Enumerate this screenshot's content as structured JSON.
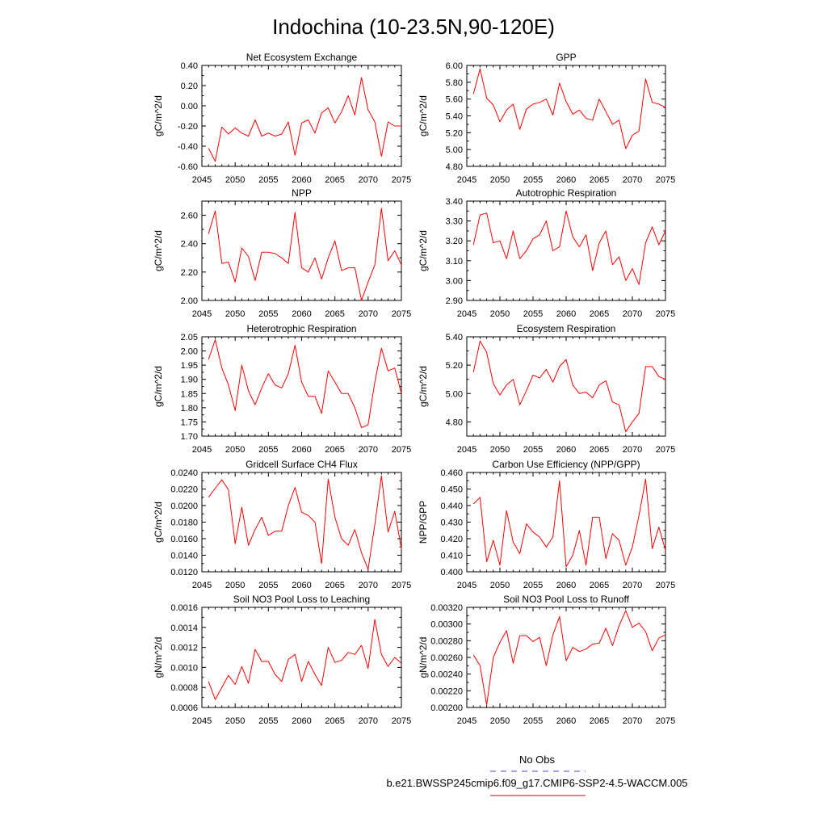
{
  "figure": {
    "title": "Indochina (10-23.5N,90-120E)"
  },
  "legend": {
    "entries": [
      {
        "label": "No Obs",
        "color": "#6a6ad6",
        "style": "dashed"
      },
      {
        "label": "b.e21.BWSSP245cmip6.f09_g17.CMIP6-SSP2-4.5-WACCM.005",
        "color": "#dd3333",
        "style": "solid"
      }
    ]
  },
  "colors": {
    "series": "#ff0000",
    "axis": "#000000"
  },
  "chart_data": [
    {
      "type": "line",
      "id": "nee",
      "title": "Net Ecosystem Exchange",
      "ylabel": "gC/m^2/d",
      "xlim": [
        2045,
        2075
      ],
      "xticks": [
        2045,
        2050,
        2055,
        2060,
        2065,
        2070,
        2075
      ],
      "ylim": [
        -0.6,
        0.4
      ],
      "yticks": [
        -0.6,
        -0.4,
        -0.2,
        0.0,
        0.2,
        0.4
      ],
      "ytick_labels": [
        "-0.60",
        "-0.40",
        "-0.20",
        "0.00",
        "0.20",
        "0.40"
      ],
      "x": [
        2046,
        2047,
        2048,
        2049,
        2050,
        2051,
        2052,
        2053,
        2054,
        2055,
        2056,
        2057,
        2058,
        2059,
        2060,
        2061,
        2062,
        2063,
        2064,
        2065,
        2066,
        2067,
        2068,
        2069,
        2070,
        2071,
        2072,
        2073,
        2074,
        2075
      ],
      "values": [
        -0.42,
        -0.55,
        -0.21,
        -0.28,
        -0.22,
        -0.27,
        -0.3,
        -0.14,
        -0.3,
        -0.27,
        -0.3,
        -0.28,
        -0.16,
        -0.49,
        -0.17,
        -0.14,
        -0.27,
        -0.07,
        -0.02,
        -0.17,
        -0.06,
        0.1,
        -0.09,
        0.28,
        -0.04,
        -0.16,
        -0.5,
        -0.16,
        -0.2,
        -0.2
      ]
    },
    {
      "type": "line",
      "id": "gpp",
      "title": "GPP",
      "ylabel": "gC/m^2/d",
      "xlim": [
        2045,
        2075
      ],
      "xticks": [
        2045,
        2050,
        2055,
        2060,
        2065,
        2070,
        2075
      ],
      "ylim": [
        4.8,
        6.0
      ],
      "yticks": [
        4.8,
        5.0,
        5.2,
        5.4,
        5.6,
        5.8,
        6.0
      ],
      "ytick_labels": [
        "4.80",
        "5.00",
        "5.20",
        "5.40",
        "5.60",
        "5.80",
        "6.00"
      ],
      "x": [
        2046,
        2047,
        2048,
        2049,
        2050,
        2051,
        2052,
        2053,
        2054,
        2055,
        2056,
        2057,
        2058,
        2059,
        2060,
        2061,
        2062,
        2063,
        2064,
        2065,
        2066,
        2067,
        2068,
        2069,
        2070,
        2071,
        2072,
        2073,
        2074,
        2075
      ],
      "values": [
        5.66,
        5.96,
        5.61,
        5.53,
        5.33,
        5.47,
        5.54,
        5.24,
        5.48,
        5.54,
        5.56,
        5.6,
        5.41,
        5.79,
        5.57,
        5.42,
        5.47,
        5.37,
        5.35,
        5.6,
        5.45,
        5.3,
        5.35,
        5.01,
        5.17,
        5.22,
        5.84,
        5.56,
        5.54,
        5.5
      ]
    },
    {
      "type": "line",
      "id": "npp",
      "title": "NPP",
      "ylabel": "gC/m^2/d",
      "xlim": [
        2045,
        2075
      ],
      "xticks": [
        2045,
        2050,
        2055,
        2060,
        2065,
        2070,
        2075
      ],
      "ylim": [
        2.0,
        2.7
      ],
      "yticks": [
        2.0,
        2.2,
        2.4,
        2.6
      ],
      "ytick_labels": [
        "2.00",
        "2.20",
        "2.40",
        "2.60"
      ],
      "x": [
        2046,
        2047,
        2048,
        2049,
        2050,
        2051,
        2052,
        2053,
        2054,
        2055,
        2056,
        2057,
        2058,
        2059,
        2060,
        2061,
        2062,
        2063,
        2064,
        2065,
        2066,
        2067,
        2068,
        2069,
        2070,
        2071,
        2072,
        2073,
        2074,
        2075
      ],
      "values": [
        2.47,
        2.63,
        2.26,
        2.27,
        2.13,
        2.37,
        2.31,
        2.14,
        2.34,
        2.34,
        2.33,
        2.3,
        2.26,
        2.62,
        2.23,
        2.2,
        2.3,
        2.15,
        2.3,
        2.42,
        2.21,
        2.23,
        2.23,
        2.0,
        2.13,
        2.25,
        2.65,
        2.28,
        2.35,
        2.25
      ]
    },
    {
      "type": "line",
      "id": "ar",
      "title": "Autotrophic Respiration",
      "ylabel": "gC/m^2/d",
      "xlim": [
        2045,
        2075
      ],
      "xticks": [
        2045,
        2050,
        2055,
        2060,
        2065,
        2070,
        2075
      ],
      "ylim": [
        2.9,
        3.4
      ],
      "yticks": [
        2.9,
        3.0,
        3.1,
        3.2,
        3.3,
        3.4
      ],
      "ytick_labels": [
        "2.90",
        "3.00",
        "3.10",
        "3.20",
        "3.30",
        "3.40"
      ],
      "x": [
        2046,
        2047,
        2048,
        2049,
        2050,
        2051,
        2052,
        2053,
        2054,
        2055,
        2056,
        2057,
        2058,
        2059,
        2060,
        2061,
        2062,
        2063,
        2064,
        2065,
        2066,
        2067,
        2068,
        2069,
        2070,
        2071,
        2072,
        2073,
        2074,
        2075
      ],
      "values": [
        3.18,
        3.33,
        3.34,
        3.19,
        3.2,
        3.11,
        3.25,
        3.11,
        3.15,
        3.21,
        3.23,
        3.3,
        3.15,
        3.17,
        3.35,
        3.22,
        3.17,
        3.23,
        3.05,
        3.19,
        3.25,
        3.08,
        3.12,
        3.0,
        3.06,
        2.98,
        3.19,
        3.27,
        3.18,
        3.25
      ]
    },
    {
      "type": "line",
      "id": "hr",
      "title": "Heterotrophic Respiration",
      "ylabel": "gC/m^2/d",
      "xlim": [
        2045,
        2075
      ],
      "xticks": [
        2045,
        2050,
        2055,
        2060,
        2065,
        2070,
        2075
      ],
      "ylim": [
        1.7,
        2.05
      ],
      "yticks": [
        1.7,
        1.75,
        1.8,
        1.85,
        1.9,
        1.95,
        2.0,
        2.05
      ],
      "ytick_labels": [
        "1.70",
        "1.75",
        "1.80",
        "1.85",
        "1.90",
        "1.95",
        "2.00",
        "2.05"
      ],
      "x": [
        2046,
        2047,
        2048,
        2049,
        2050,
        2051,
        2052,
        2053,
        2054,
        2055,
        2056,
        2057,
        2058,
        2059,
        2060,
        2061,
        2062,
        2063,
        2064,
        2065,
        2066,
        2067,
        2068,
        2069,
        2070,
        2071,
        2072,
        2073,
        2074,
        2075
      ],
      "values": [
        1.97,
        2.04,
        1.94,
        1.88,
        1.79,
        1.95,
        1.86,
        1.81,
        1.87,
        1.92,
        1.88,
        1.87,
        1.92,
        2.02,
        1.89,
        1.84,
        1.84,
        1.78,
        1.93,
        1.89,
        1.85,
        1.85,
        1.8,
        1.73,
        1.74,
        1.89,
        2.01,
        1.93,
        1.94,
        1.85
      ]
    },
    {
      "type": "line",
      "id": "er",
      "title": "Ecosystem Respiration",
      "ylabel": "gC/m^2/d",
      "xlim": [
        2045,
        2075
      ],
      "xticks": [
        2045,
        2050,
        2055,
        2060,
        2065,
        2070,
        2075
      ],
      "ylim": [
        4.7,
        5.4
      ],
      "yticks": [
        4.8,
        5.0,
        5.2,
        5.4
      ],
      "ytick_labels": [
        "4.80",
        "5.00",
        "5.20",
        "5.40"
      ],
      "x": [
        2046,
        2047,
        2048,
        2049,
        2050,
        2051,
        2052,
        2053,
        2054,
        2055,
        2056,
        2057,
        2058,
        2059,
        2060,
        2061,
        2062,
        2063,
        2064,
        2065,
        2066,
        2067,
        2068,
        2069,
        2070,
        2071,
        2072,
        2073,
        2074,
        2075
      ],
      "values": [
        5.15,
        5.37,
        5.29,
        5.07,
        4.99,
        5.06,
        5.1,
        4.92,
        5.02,
        5.13,
        5.11,
        5.17,
        5.08,
        5.19,
        5.24,
        5.06,
        5.0,
        5.01,
        4.97,
        5.06,
        5.09,
        4.94,
        4.92,
        4.73,
        4.8,
        4.86,
        5.19,
        5.19,
        5.12,
        5.1
      ]
    },
    {
      "type": "line",
      "id": "ch4",
      "title": "Gridcell Surface CH4 Flux",
      "ylabel": "gC/m^2/d",
      "xlim": [
        2045,
        2075
      ],
      "xticks": [
        2045,
        2050,
        2055,
        2060,
        2065,
        2070,
        2075
      ],
      "ylim": [
        0.012,
        0.024
      ],
      "yticks": [
        0.012,
        0.014,
        0.016,
        0.018,
        0.02,
        0.022,
        0.024
      ],
      "ytick_labels": [
        "0.0120",
        "0.0140",
        "0.0160",
        "0.0180",
        "0.0200",
        "0.0220",
        "0.0240"
      ],
      "x": [
        2046,
        2047,
        2048,
        2049,
        2050,
        2051,
        2052,
        2053,
        2054,
        2055,
        2056,
        2057,
        2058,
        2059,
        2060,
        2061,
        2062,
        2063,
        2064,
        2065,
        2066,
        2067,
        2068,
        2069,
        2070,
        2071,
        2072,
        2073,
        2074,
        2075
      ],
      "values": [
        0.021,
        0.0221,
        0.0231,
        0.0219,
        0.0154,
        0.0198,
        0.0152,
        0.0171,
        0.0186,
        0.0164,
        0.0169,
        0.0169,
        0.02,
        0.0222,
        0.0192,
        0.0188,
        0.018,
        0.013,
        0.0232,
        0.0186,
        0.016,
        0.0152,
        0.0171,
        0.0143,
        0.0123,
        0.0177,
        0.0236,
        0.0168,
        0.0193,
        0.0148
      ]
    },
    {
      "type": "line",
      "id": "cue",
      "title": "Carbon Use Efficiency (NPP/GPP)",
      "ylabel": "NPP/GPP",
      "xlim": [
        2045,
        2075
      ],
      "xticks": [
        2045,
        2050,
        2055,
        2060,
        2065,
        2070,
        2075
      ],
      "ylim": [
        0.4,
        0.46
      ],
      "yticks": [
        0.4,
        0.41,
        0.42,
        0.43,
        0.44,
        0.45,
        0.46
      ],
      "ytick_labels": [
        "0.400",
        "0.410",
        "0.420",
        "0.430",
        "0.440",
        "0.450",
        "0.460"
      ],
      "x": [
        2046,
        2047,
        2048,
        2049,
        2050,
        2051,
        2052,
        2053,
        2054,
        2055,
        2056,
        2057,
        2058,
        2059,
        2060,
        2061,
        2062,
        2063,
        2064,
        2065,
        2066,
        2067,
        2068,
        2069,
        2070,
        2071,
        2072,
        2073,
        2074,
        2075
      ],
      "values": [
        0.441,
        0.445,
        0.406,
        0.419,
        0.404,
        0.437,
        0.418,
        0.411,
        0.429,
        0.424,
        0.421,
        0.415,
        0.421,
        0.455,
        0.403,
        0.41,
        0.425,
        0.404,
        0.433,
        0.433,
        0.408,
        0.423,
        0.419,
        0.404,
        0.415,
        0.434,
        0.456,
        0.414,
        0.427,
        0.413
      ]
    },
    {
      "type": "line",
      "id": "leach",
      "title": "Soil NO3 Pool Loss to Leaching",
      "ylabel": "gN/m^2/d",
      "xlim": [
        2045,
        2075
      ],
      "xticks": [
        2045,
        2050,
        2055,
        2060,
        2065,
        2070,
        2075
      ],
      "ylim": [
        0.0006,
        0.0016
      ],
      "yticks": [
        0.0006,
        0.0008,
        0.001,
        0.0012,
        0.0014,
        0.0016
      ],
      "ytick_labels": [
        "0.0006",
        "0.0008",
        "0.0010",
        "0.0012",
        "0.0014",
        "0.0016"
      ],
      "x": [
        2046,
        2047,
        2048,
        2049,
        2050,
        2051,
        2052,
        2053,
        2054,
        2055,
        2056,
        2057,
        2058,
        2059,
        2060,
        2061,
        2062,
        2063,
        2064,
        2065,
        2066,
        2067,
        2068,
        2069,
        2070,
        2071,
        2072,
        2073,
        2074,
        2075
      ],
      "values": [
        0.00086,
        0.00068,
        0.0008,
        0.00092,
        0.00083,
        0.00101,
        0.00084,
        0.00118,
        0.00106,
        0.00106,
        0.00093,
        0.00086,
        0.00108,
        0.00113,
        0.00086,
        0.00106,
        0.00093,
        0.00082,
        0.0012,
        0.00105,
        0.00107,
        0.00115,
        0.00113,
        0.00122,
        0.00099,
        0.00148,
        0.00113,
        0.00101,
        0.0011,
        0.00104
      ]
    },
    {
      "type": "line",
      "id": "runoff",
      "title": "Soil NO3 Pool Loss to Runoff",
      "ylabel": "gN/m^2/d",
      "xlim": [
        2045,
        2075
      ],
      "xticks": [
        2045,
        2050,
        2055,
        2060,
        2065,
        2070,
        2075
      ],
      "ylim": [
        0.002,
        0.0032
      ],
      "yticks": [
        0.002,
        0.0022,
        0.0024,
        0.0026,
        0.0028,
        0.003,
        0.0032
      ],
      "ytick_labels": [
        "0.00200",
        "0.00220",
        "0.00240",
        "0.00260",
        "0.00280",
        "0.00300",
        "0.00320"
      ],
      "x": [
        2046,
        2047,
        2048,
        2049,
        2050,
        2051,
        2052,
        2053,
        2054,
        2055,
        2056,
        2057,
        2058,
        2059,
        2060,
        2061,
        2062,
        2063,
        2064,
        2065,
        2066,
        2067,
        2068,
        2069,
        2070,
        2071,
        2072,
        2073,
        2074,
        2075
      ],
      "values": [
        0.00263,
        0.0025,
        0.00203,
        0.0026,
        0.00278,
        0.00292,
        0.00253,
        0.00286,
        0.00286,
        0.00279,
        0.00284,
        0.0025,
        0.00287,
        0.00309,
        0.00256,
        0.00272,
        0.00267,
        0.0027,
        0.00276,
        0.00277,
        0.00295,
        0.00274,
        0.00298,
        0.00316,
        0.00296,
        0.00301,
        0.00291,
        0.00268,
        0.00283,
        0.00287
      ]
    }
  ]
}
